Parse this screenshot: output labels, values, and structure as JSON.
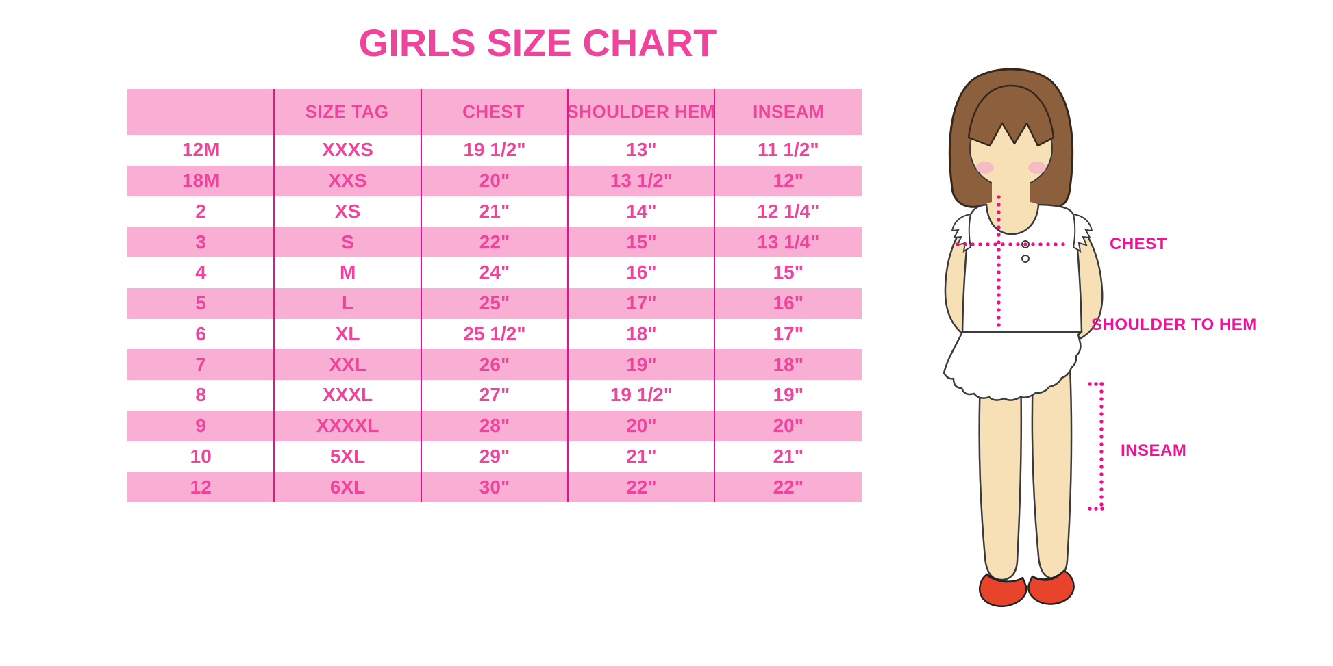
{
  "title": "GIRLS SIZE CHART",
  "chart_data": {
    "type": "table",
    "title": "GIRLS SIZE CHART",
    "columns": [
      "",
      "SIZE TAG",
      "CHEST",
      "SHOULDER HEM",
      "INSEAM"
    ],
    "rows": [
      [
        "12M",
        "XXXS",
        "19 1/2\"",
        "13\"",
        "11 1/2\""
      ],
      [
        "18M",
        "XXS",
        "20\"",
        "13 1/2\"",
        "12\""
      ],
      [
        "2",
        "XS",
        "21\"",
        "14\"",
        "12 1/4\""
      ],
      [
        "3",
        "S",
        "22\"",
        "15\"",
        "13 1/4\""
      ],
      [
        "4",
        "M",
        "24\"",
        "16\"",
        "15\""
      ],
      [
        "5",
        "L",
        "25\"",
        "17\"",
        "16\""
      ],
      [
        "6",
        "XL",
        "25 1/2\"",
        "18\"",
        "17\""
      ],
      [
        "7",
        "XXL",
        "26\"",
        "19\"",
        "18\""
      ],
      [
        "8",
        "XXXL",
        "27\"",
        "19 1/2\"",
        "19\""
      ],
      [
        "9",
        "XXXXL",
        "28\"",
        "20\"",
        "20\""
      ],
      [
        "10",
        "5XL",
        "29\"",
        "21\"",
        "21\""
      ],
      [
        "12",
        "6XL",
        "30\"",
        "22\"",
        "22\""
      ]
    ],
    "layout": {
      "stripe": "alternating white/pink starting white",
      "grid": "vertical magenta dividers only"
    }
  },
  "figure": {
    "labels": {
      "chest": "CHEST",
      "shoulder_to_hem": "SHOULDER TO HEM",
      "inseam": "INSEAM"
    }
  },
  "colors": {
    "accent_pink_text": "#F0439B",
    "row_pink": "#F9AED4",
    "divider_magenta": "#E9118C",
    "dot_magenta": "#ED108E",
    "label_pink": "#F0109A",
    "hair_brown": "#8C5F3D",
    "skin": "#F7E0B5",
    "blush": "#F5B6C6",
    "shoe_red": "#E8432B"
  }
}
